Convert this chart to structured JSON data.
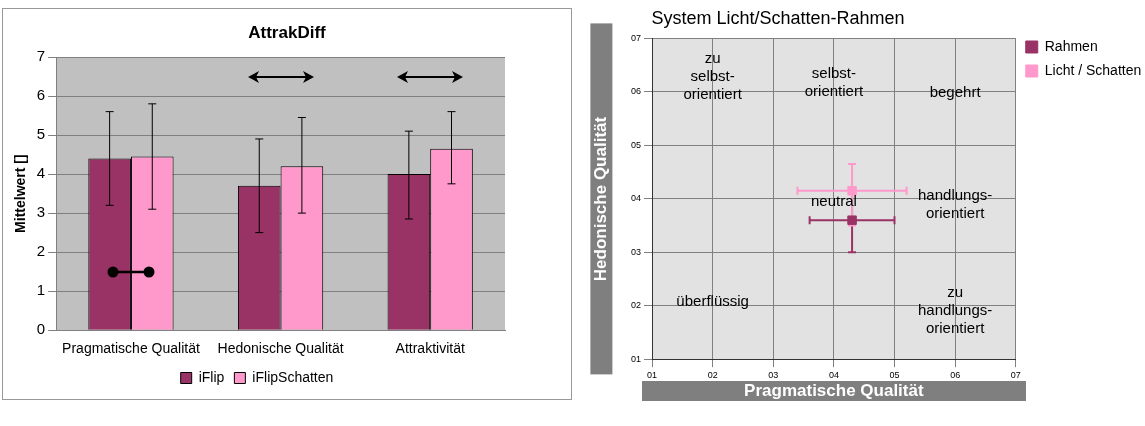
{
  "chart_data": [
    {
      "type": "bar",
      "title": "AttrakDiff",
      "ylabel": "Mittelwert []",
      "categories": [
        "Pragmatische Qualität",
        "Hedonische Qualität",
        "Attraktivität"
      ],
      "series": [
        {
          "name": "iFlip",
          "color": "#993366",
          "values": [
            4.4,
            3.7,
            4.0
          ],
          "errors": [
            [
              3.2,
              5.6
            ],
            [
              2.5,
              4.9
            ],
            [
              2.85,
              5.1
            ]
          ]
        },
        {
          "name": "iFlipSchatten",
          "color": "#ff99cc",
          "values": [
            4.45,
            4.2,
            4.65
          ],
          "errors": [
            [
              3.1,
              5.8
            ],
            [
              3.0,
              5.45
            ],
            [
              3.75,
              5.6
            ]
          ]
        }
      ],
      "ylim": [
        0,
        7
      ],
      "yticks": [
        0,
        1,
        2,
        3,
        4,
        5,
        6,
        7
      ],
      "grid": "y",
      "legend": "bottom"
    },
    {
      "type": "scatter",
      "title": "System Licht/Schatten-Rahmen",
      "xlabel": "Pragmatische Qualität",
      "ylabel": "Hedonische Qualität",
      "marker": "square",
      "series": [
        {
          "name": "Rahmen",
          "color": "#993366",
          "x": [
            4.3
          ],
          "values": [
            3.6
          ],
          "xerrors": [
            [
              3.6,
              5.0
            ]
          ],
          "errors": [
            [
              3.0,
              4.1
            ]
          ]
        },
        {
          "name": "Licht / Schatten",
          "color": "#ff99cc",
          "x": [
            4.3
          ],
          "values": [
            4.15
          ],
          "xerrors": [
            [
              3.4,
              5.2
            ]
          ],
          "errors": [
            [
              3.5,
              4.65
            ]
          ]
        }
      ],
      "xlim": [
        1,
        7
      ],
      "ylim": [
        1,
        7
      ],
      "xticks": [
        {
          "value": 1,
          "label": "01"
        },
        {
          "value": 2,
          "label": "02"
        },
        {
          "value": 3,
          "label": "03"
        },
        {
          "value": 4,
          "label": "04"
        },
        {
          "value": 5,
          "label": "05"
        },
        {
          "value": 6,
          "label": "06"
        },
        {
          "value": 7,
          "label": "07"
        }
      ],
      "yticks": [
        {
          "value": 1,
          "label": "01"
        },
        {
          "value": 2,
          "label": "02"
        },
        {
          "value": 3,
          "label": "03"
        },
        {
          "value": 4,
          "label": "04"
        },
        {
          "value": 5,
          "label": "05"
        },
        {
          "value": 6,
          "label": "06"
        },
        {
          "value": 7,
          "label": "07"
        }
      ],
      "grid": true,
      "legend": "top right",
      "annotations": [
        "zu\nselbst-\norientiert",
        "selbst-\norientiert",
        "begehrt",
        "neutral",
        "handlungs-\norientiert",
        "überflüssig",
        "zu\nhandlungs-\norientiert"
      ]
    }
  ]
}
